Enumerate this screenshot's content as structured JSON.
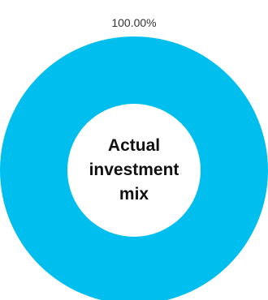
{
  "chart_data": {
    "type": "pie",
    "variant": "donut",
    "center_label_lines": [
      "Actual",
      "investment",
      "mix"
    ],
    "slices": [
      {
        "value": 100.0,
        "label": "100.00%",
        "color": "#00BFEF"
      }
    ]
  }
}
